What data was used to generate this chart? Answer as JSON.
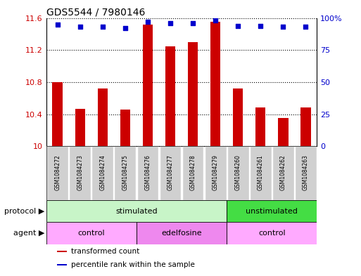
{
  "title": "GDS5544 / 7980146",
  "samples": [
    "GSM1084272",
    "GSM1084273",
    "GSM1084274",
    "GSM1084275",
    "GSM1084276",
    "GSM1084277",
    "GSM1084278",
    "GSM1084279",
    "GSM1084260",
    "GSM1084261",
    "GSM1084262",
    "GSM1084263"
  ],
  "bar_values": [
    10.8,
    10.47,
    10.72,
    10.46,
    11.52,
    11.25,
    11.3,
    11.55,
    10.72,
    10.48,
    10.35,
    10.48
  ],
  "percentile_values": [
    95,
    93,
    93,
    92,
    97,
    96,
    96,
    98,
    94,
    94,
    93,
    93
  ],
  "bar_color": "#cc0000",
  "percentile_color": "#0000cc",
  "ylim_left": [
    10.0,
    11.6
  ],
  "ylim_right": [
    0,
    100
  ],
  "yticks_left": [
    10.0,
    10.4,
    10.8,
    11.2,
    11.6
  ],
  "ytick_labels_left": [
    "10",
    "10.4",
    "10.8",
    "11.2",
    "11.6"
  ],
  "yticks_right": [
    0,
    25,
    50,
    75,
    100
  ],
  "ytick_labels_right": [
    "0",
    "25",
    "50",
    "75",
    "100%"
  ],
  "protocol_groups": [
    {
      "label": "stimulated",
      "start": 0,
      "end": 8,
      "color": "#c8f5c8"
    },
    {
      "label": "unstimulated",
      "start": 8,
      "end": 12,
      "color": "#44dd44"
    }
  ],
  "agent_groups": [
    {
      "label": "control",
      "start": 0,
      "end": 4,
      "color": "#ffaaff"
    },
    {
      "label": "edelfosine",
      "start": 4,
      "end": 8,
      "color": "#ee88ee"
    },
    {
      "label": "control",
      "start": 8,
      "end": 12,
      "color": "#ffaaff"
    }
  ],
  "sample_box_color": "#d0d0d0",
  "background_color": "#ffffff",
  "label_protocol": "protocol",
  "label_agent": "agent",
  "legend_items": [
    {
      "label": "transformed count",
      "color": "#cc0000"
    },
    {
      "label": "percentile rank within the sample",
      "color": "#0000cc"
    }
  ],
  "bar_width": 0.45
}
